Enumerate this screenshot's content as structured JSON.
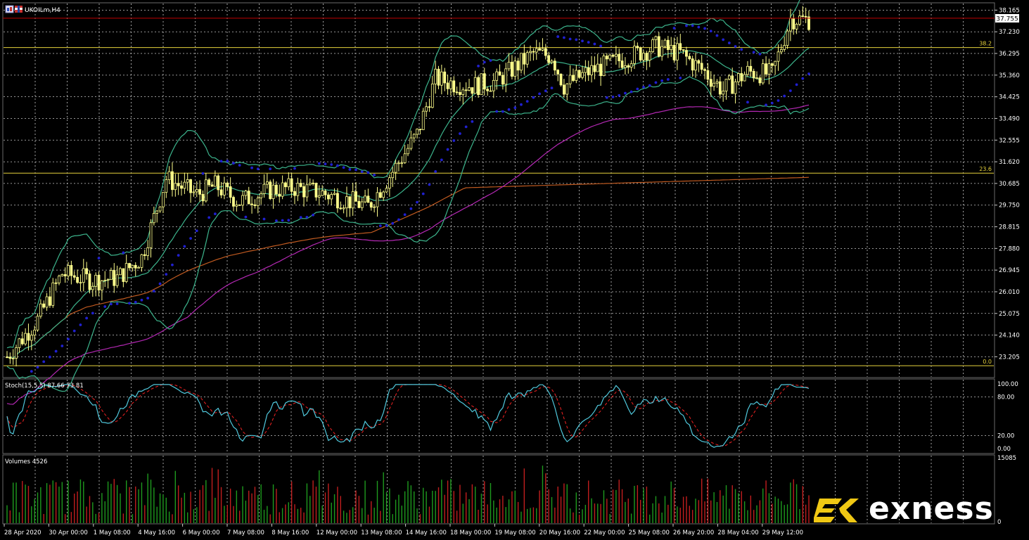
{
  "window": {
    "title": "UKOILm,H4",
    "icons": [
      "chart-window-icon",
      "instrument-flag-icon"
    ]
  },
  "colors": {
    "background": "#000000",
    "grid": "#c8c8c8",
    "candle": "#ffff8c",
    "price_line": "#c00000",
    "fib": "#e6d23c",
    "bollinger": "#3cb48c",
    "ma_long": "#c05a20",
    "ma_mid": "#b428b4",
    "sar": "#2020d0",
    "stoch_main": "#50c8dc",
    "stoch_signal": "#e02020",
    "vol_up": "#1e9a1e",
    "vol_down": "#c01e1e",
    "logo_accent": "#f0c814"
  },
  "price_panel": {
    "current_price": "37.755",
    "axis_ticks": [
      "38.165",
      "37.230",
      "36.295",
      "35.360",
      "34.425",
      "33.490",
      "32.555",
      "31.620",
      "30.685",
      "29.750",
      "28.815",
      "27.880",
      "26.945",
      "26.010",
      "25.075",
      "24.140",
      "23.205"
    ],
    "fib_levels": [
      {
        "label": "38.2",
        "value": 36.55
      },
      {
        "label": "23.6",
        "value": 31.13
      },
      {
        "label": "0.0",
        "value": 22.82
      }
    ]
  },
  "stoch_panel": {
    "label": "Stoch(15,5,5) 87.66 73.81",
    "axis_ticks": [
      "100.00",
      "80.00",
      "20.00",
      "0.00"
    ]
  },
  "volume_panel": {
    "label": "Volumes 4526",
    "axis_top": "15085",
    "axis_bottom": "0"
  },
  "time_axis": [
    "28 Apr 2020",
    "30 Apr 00:00",
    "1 May 08:00",
    "4 May 16:00",
    "6 May 00:00",
    "7 May 08:00",
    "8 May 16:00",
    "12 May 00:00",
    "13 May 08:00",
    "14 May 16:00",
    "18 May 00:00",
    "19 May 08:00",
    "20 May 16:00",
    "22 May 00:00",
    "25 May 08:00",
    "26 May 20:00",
    "28 May 04:00",
    "29 May 12:00"
  ],
  "logo": {
    "text": "exness",
    "icon": "exness-logo-icon"
  }
}
